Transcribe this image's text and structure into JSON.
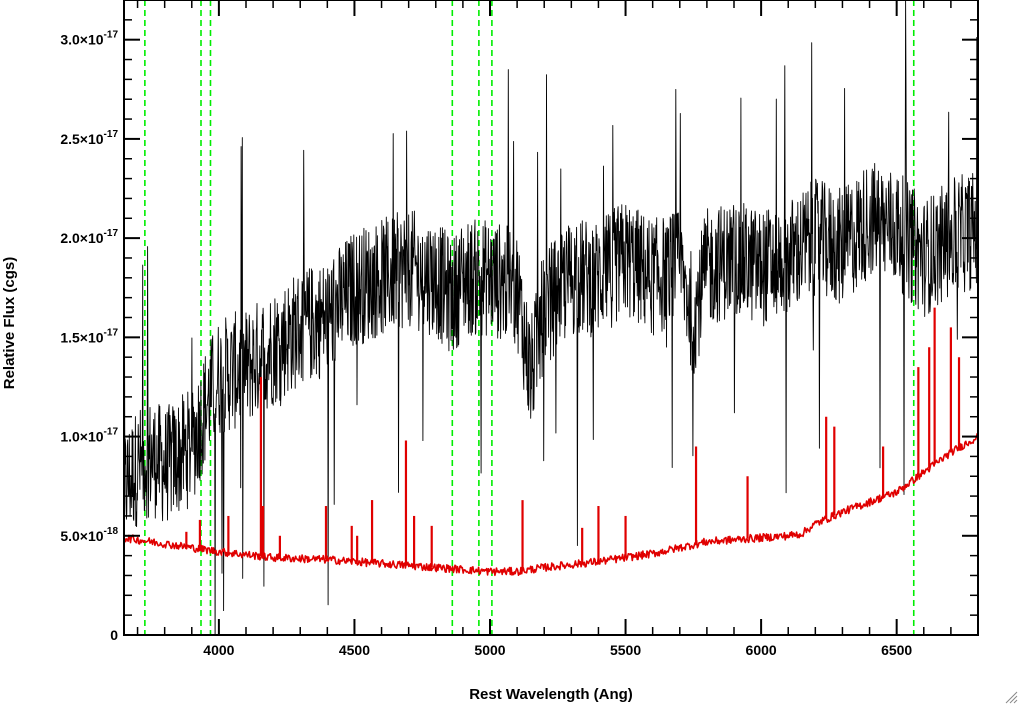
{
  "chart_data": {
    "type": "line",
    "title": "",
    "xlabel": "Rest Wavelength (Ang)",
    "ylabel": "Relative Flux (cgs)",
    "xlim": [
      3650,
      6800
    ],
    "ylim": [
      0,
      3.2e-17
    ],
    "x_ticks": [
      4000,
      4500,
      5000,
      5500,
      6000,
      6500
    ],
    "x_tick_labels": [
      "4000",
      "4500",
      "5000",
      "5500",
      "6000",
      "6500"
    ],
    "y_ticks": [
      0,
      5e-18,
      1e-17,
      1.5e-17,
      2e-17,
      2.5e-17,
      3e-17
    ],
    "y_tick_labels": [
      {
        "mantissa": "0",
        "exponent": ""
      },
      {
        "mantissa": "5.0×10",
        "exponent": "-18"
      },
      {
        "mantissa": "1.0×10",
        "exponent": "-17"
      },
      {
        "mantissa": "1.5×10",
        "exponent": "-17"
      },
      {
        "mantissa": "2.0×10",
        "exponent": "-17"
      },
      {
        "mantissa": "2.5×10",
        "exponent": "-17"
      },
      {
        "mantissa": "3.0×10",
        "exponent": "-17"
      }
    ],
    "grid": false,
    "series": [
      {
        "color": "#000000",
        "x": [
          3650,
          3700,
          3750,
          3800,
          3850,
          3900,
          3950,
          4000,
          4100,
          4200,
          4300,
          4400,
          4500,
          4600,
          4700,
          4800,
          4860,
          4900,
          5000,
          5100,
          5150,
          5200,
          5300,
          5400,
          5500,
          5600,
          5700,
          5750,
          5800,
          5900,
          6000,
          6100,
          6200,
          6300,
          6400,
          6500,
          6600,
          6700,
          6800
        ],
        "y": [
          7.5e-18,
          8.5e-18,
          9e-18,
          8.5e-18,
          9e-18,
          9.5e-18,
          1.15e-17,
          1.3e-17,
          1.35e-17,
          1.45e-17,
          1.55e-17,
          1.6e-17,
          1.75e-17,
          1.8e-17,
          1.85e-17,
          1.8e-17,
          1.7e-17,
          1.8e-17,
          1.8e-17,
          1.75e-17,
          1.3e-17,
          1.65e-17,
          1.8e-17,
          1.8e-17,
          1.9e-17,
          1.8e-17,
          1.85e-17,
          1.6e-17,
          1.85e-17,
          1.9e-17,
          1.85e-17,
          1.9e-17,
          2e-17,
          1.95e-17,
          2.1e-17,
          2.05e-17,
          1.9e-17,
          2e-17,
          2.05e-17
        ],
        "noise_amplitude": 3e-18
      },
      {
        "color": "#e00000",
        "x": [
          3650,
          3800,
          4000,
          4200,
          4400,
          4600,
          4800,
          5000,
          5100,
          5200,
          5400,
          5600,
          5700,
          5800,
          6000,
          6100,
          6150,
          6200,
          6300,
          6400,
          6500,
          6600,
          6700,
          6800
        ],
        "y": [
          4.9e-18,
          4.6e-18,
          4.2e-18,
          3.9e-18,
          3.8e-18,
          3.6e-18,
          3.4e-18,
          3.2e-18,
          3.2e-18,
          3.4e-18,
          3.7e-18,
          4.1e-18,
          4.4e-18,
          4.7e-18,
          4.9e-18,
          5e-18,
          5.1e-18,
          5.6e-18,
          6.2e-18,
          6.7e-18,
          7.2e-18,
          8.2e-18,
          9.2e-18,
          1e-17
        ],
        "noise_amplitude": 2e-19
      }
    ],
    "emission_spikes": [
      {
        "x": 4155,
        "y": 1.3e-17
      },
      {
        "x": 4163,
        "y": 6.5e-18
      },
      {
        "x": 4035,
        "y": 6e-18
      },
      {
        "x": 3930,
        "y": 5.8e-18
      },
      {
        "x": 3880,
        "y": 5.2e-18
      },
      {
        "x": 4225,
        "y": 5e-18
      },
      {
        "x": 4395,
        "y": 6.5e-18
      },
      {
        "x": 4490,
        "y": 5.5e-18
      },
      {
        "x": 4510,
        "y": 5e-18
      },
      {
        "x": 4565,
        "y": 6.8e-18
      },
      {
        "x": 4690,
        "y": 9.8e-18
      },
      {
        "x": 4720,
        "y": 6e-18
      },
      {
        "x": 4785,
        "y": 5.5e-18
      },
      {
        "x": 5120,
        "y": 6.8e-18
      },
      {
        "x": 5340,
        "y": 5.4e-18
      },
      {
        "x": 5400,
        "y": 6.5e-18
      },
      {
        "x": 5500,
        "y": 6e-18
      },
      {
        "x": 5760,
        "y": 9.5e-18
      },
      {
        "x": 5950,
        "y": 8e-18
      },
      {
        "x": 6240,
        "y": 1.1e-17
      },
      {
        "x": 6270,
        "y": 1.05e-17
      },
      {
        "x": 6450,
        "y": 9.5e-18
      },
      {
        "x": 6580,
        "y": 1.35e-17
      },
      {
        "x": 6620,
        "y": 1.45e-17
      },
      {
        "x": 6640,
        "y": 1.65e-17
      },
      {
        "x": 6700,
        "y": 1.55e-17
      },
      {
        "x": 6730,
        "y": 1.4e-17
      }
    ],
    "reference_lines": {
      "color": "#00ee00",
      "style": "dashed",
      "x": [
        3727,
        3934,
        3969,
        4861,
        4959,
        5007,
        6563
      ]
    }
  }
}
